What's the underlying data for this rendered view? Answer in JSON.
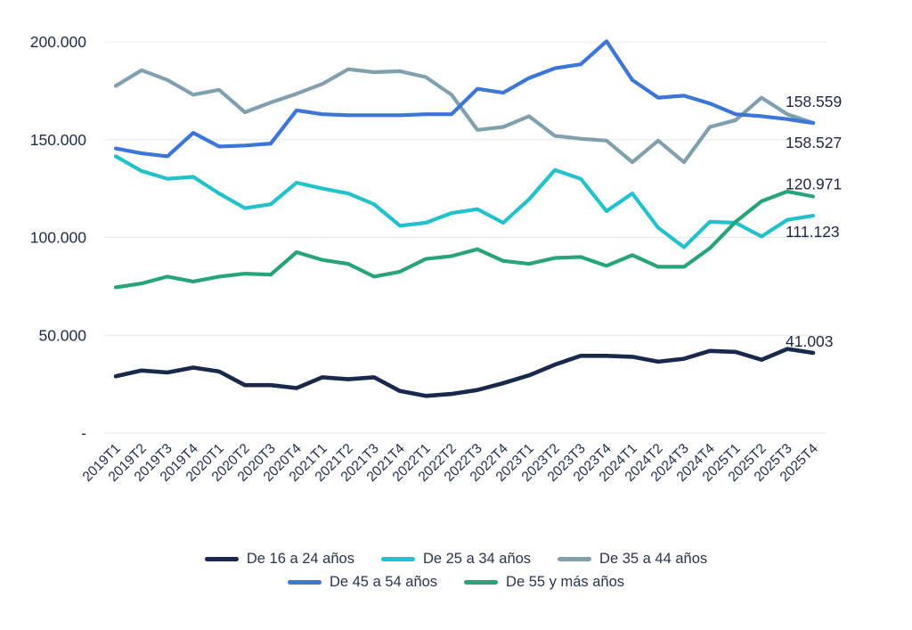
{
  "chart_data": {
    "type": "line",
    "title": "",
    "xlabel": "",
    "ylabel": "",
    "grid": "horizontal",
    "legend_position": "bottom",
    "ylim": [
      0,
      210000
    ],
    "y_ticks": [
      {
        "label": "200.000",
        "value": 200000
      },
      {
        "label": "150.000",
        "value": 150000
      },
      {
        "label": "100.000",
        "value": 100000
      },
      {
        "label": "50.000",
        "value": 50000
      },
      {
        "label": "-",
        "value": 0
      }
    ],
    "categories": [
      "2019T1",
      "2019T2",
      "2019T3",
      "2019T4",
      "2020T1",
      "2020T2",
      "2020T3",
      "2020T4",
      "2021T1",
      "2021T2",
      "2021T3",
      "2021T4",
      "2022T1",
      "2022T2",
      "2022T3",
      "2022T4",
      "2023T1",
      "2023T2",
      "2023T3",
      "2023T4",
      "2024T1",
      "2024T2",
      "2024T3",
      "2024T4",
      "2025T1",
      "2025T2",
      "2025T3",
      "2025T4"
    ],
    "series": [
      {
        "name": "De 16 a 24 años",
        "color": "#18294d",
        "end_label": "41.003",
        "values": [
          29000,
          32000,
          31000,
          33500,
          31500,
          24500,
          24500,
          23000,
          28500,
          27500,
          28500,
          21500,
          19000,
          20000,
          22000,
          25500,
          29500,
          35000,
          39500,
          39500,
          39000,
          36500,
          38000,
          42000,
          41500,
          37500,
          43000,
          41003
        ]
      },
      {
        "name": "De 25 a 34 años",
        "color": "#22c2cc",
        "end_label": "111.123",
        "values": [
          141500,
          134000,
          130000,
          131000,
          122500,
          115000,
          117000,
          128000,
          125000,
          122500,
          117000,
          106000,
          107500,
          112500,
          114500,
          107500,
          119500,
          134500,
          130000,
          113500,
          122500,
          105000,
          95000,
          108000,
          107500,
          100500,
          109000,
          111123
        ]
      },
      {
        "name": "De 35 a 44 años",
        "color": "#80a0b0",
        "end_label": "158.527",
        "values": [
          177500,
          185500,
          180500,
          173000,
          175500,
          164000,
          169000,
          173500,
          178500,
          186000,
          184500,
          185000,
          182000,
          173000,
          155000,
          156500,
          162000,
          152000,
          150500,
          149500,
          138500,
          149500,
          138500,
          156500,
          160000,
          171500,
          163000,
          158527
        ]
      },
      {
        "name": "De 45 a 54 años",
        "color": "#3b76d8",
        "end_label": "158.559",
        "values": [
          145500,
          143000,
          141500,
          153500,
          146500,
          147000,
          148000,
          165000,
          163000,
          162500,
          162500,
          162500,
          163000,
          163000,
          176000,
          174000,
          181500,
          186500,
          188500,
          200300,
          180500,
          171500,
          172500,
          168500,
          163000,
          162000,
          160500,
          158559
        ]
      },
      {
        "name": "De 55 y más años",
        "color": "#27a47c",
        "end_label": "120.971",
        "values": [
          74500,
          76500,
          80000,
          77500,
          80000,
          81500,
          81000,
          92500,
          88500,
          86500,
          80000,
          82500,
          89000,
          90500,
          94000,
          88000,
          86500,
          89500,
          90000,
          85500,
          91000,
          85000,
          85000,
          94500,
          108000,
          118500,
          123500,
          120971
        ]
      }
    ],
    "legend_rows": [
      [
        0,
        1,
        2
      ],
      [
        3,
        4
      ]
    ]
  },
  "style": {
    "axis_text_color": "#1d2b4f",
    "end_label_color": "#1c2747",
    "gridline_color": "#e7e7e7",
    "background": "#ffffff"
  }
}
